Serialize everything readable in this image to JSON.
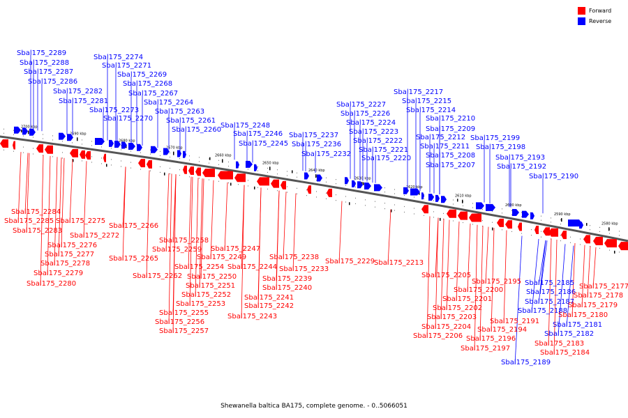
{
  "legend": {
    "forward_label": "Forward",
    "forward_color": "#ff0000",
    "reverse_label": "Reverse",
    "reverse_color": "#0000ff"
  },
  "footer": "Shewanella baltica BA175, complete genome. - 0..5066051",
  "scale_ticks": [
    "2700 kbp",
    "2690 kbp",
    "2680 kbp",
    "2670 kbp",
    "2660 kbp",
    "2650 kbp",
    "2640 kbp",
    "2630 kbp",
    "2620 kbp",
    "2610 kbp",
    "2600 kbp",
    "2590 kbp",
    "2580 kbp"
  ],
  "reverse_genes": [
    "Sbal175_2289",
    "Sbal175_2288",
    "Sbal175_2287",
    "Sbal175_2286",
    "Sbal175_2274",
    "Sbal175_2271",
    "Sbal175_2269",
    "Sbal175_2268",
    "Sbal175_2282",
    "Sbal175_2281",
    "Sbal175_2267",
    "Sbal175_2264",
    "Sbal175_2273",
    "Sbal175_2263",
    "Sbal175_2270",
    "Sbal175_2261",
    "Sbal175_2260",
    "Sbal175_2248",
    "Sbal175_2246",
    "Sbal175_2245",
    "Sbal175_2237",
    "Sbal175_2236",
    "Sbal175_2232",
    "Sbal175_2227",
    "Sbal175_2226",
    "Sbal175_2224",
    "Sbal175_2223",
    "Sbal175_2222",
    "Sbal175_2221",
    "Sbal175_2220",
    "Sbal175_2217",
    "Sbal175_2215",
    "Sbal175_2214",
    "Sbal175_2210",
    "Sbal175_2209",
    "Sbal175_2212",
    "Sbal175_2211",
    "Sbal175_2208",
    "Sbal175_2207",
    "Sbal175_2199",
    "Sbal175_2198",
    "Sbal175_2193",
    "Sbal175_2192",
    "Sbal175_2190",
    "Sbal175_2185",
    "Sbal175_2186",
    "Sbal175_2187",
    "Sbal175_2188",
    "Sbal175_2181",
    "Sbal175_2182",
    "Sbal175_2189"
  ],
  "forward_genes": [
    "Sbal175_2284",
    "Sbal175_2285",
    "Sbal175_2283",
    "Sbal175_2275",
    "Sbal175_2272",
    "Sbal175_2276",
    "Sbal175_2277",
    "Sbal175_2278",
    "Sbal175_2279",
    "Sbal175_2280",
    "Sbal175_2266",
    "Sbal175_2265",
    "Sbal175_2258",
    "Sbal175_2259",
    "Sbal175_2262",
    "Sbal175_2254",
    "Sbal175_2250",
    "Sbal175_2251",
    "Sbal175_2252",
    "Sbal175_2253",
    "Sbal175_2255",
    "Sbal175_2256",
    "Sbal175_2257",
    "Sbal175_2247",
    "Sbal175_2249",
    "Sbal175_2244",
    "Sbal175_2238",
    "Sbal175_2233",
    "Sbal175_2239",
    "Sbal175_2240",
    "Sbal175_2241",
    "Sbal175_2242",
    "Sbal175_2243",
    "Sbal175_2229",
    "Sbal175_2213",
    "Sbal175_2205",
    "Sbal175_2200",
    "Sbal175_2201",
    "Sbal175_2202",
    "Sbal175_2203",
    "Sbal175_2204",
    "Sbal175_2206",
    "Sbal175_2195",
    "Sbal175_2191",
    "Sbal175_2194",
    "Sbal175_2196",
    "Sbal175_2197",
    "Sbal175_2183",
    "Sbal175_2184",
    "Sbal175_2177",
    "Sbal175_2178",
    "Sbal175_2179",
    "Sbal175_2180"
  ]
}
